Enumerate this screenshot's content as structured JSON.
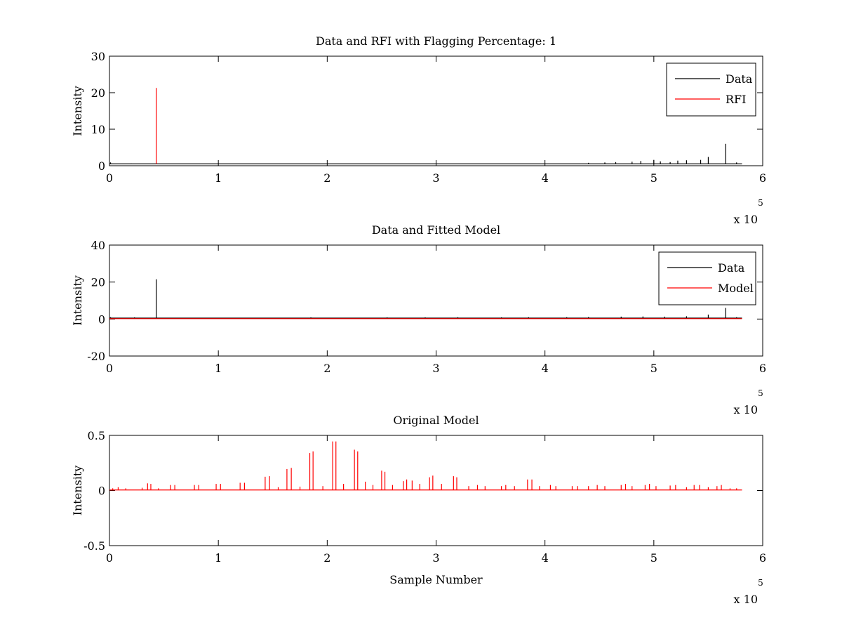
{
  "chart_data": [
    {
      "type": "line",
      "title": "Data and RFI with Flagging Percentage: 1",
      "xlabel": "",
      "ylabel": "Intensity",
      "xlim": [
        0,
        6
      ],
      "ylim": [
        0,
        30
      ],
      "x_exponent": {
        "base": "x 10",
        "power": "5"
      },
      "xticks": [
        0,
        1,
        2,
        3,
        4,
        5,
        6
      ],
      "xticklabels": [
        "0",
        "1",
        "2",
        "3",
        "4",
        "5",
        "6"
      ],
      "yticks": [
        0,
        10,
        20,
        30
      ],
      "yticklabels": [
        "0",
        "10",
        "20",
        "30"
      ],
      "legend_position": "top-right",
      "series": [
        {
          "name": "Data",
          "color": "#000000",
          "baseline": 0.5,
          "x_end": 5.81,
          "spikes": [
            [
              0.01,
              0.9
            ],
            [
              0.2,
              0.6
            ],
            [
              4.4,
              0.8
            ],
            [
              4.55,
              0.9
            ],
            [
              4.65,
              1.0
            ],
            [
              4.8,
              1.1
            ],
            [
              4.88,
              1.3
            ],
            [
              5.0,
              1.6
            ],
            [
              5.06,
              1.2
            ],
            [
              5.15,
              1.0
            ],
            [
              5.22,
              1.4
            ],
            [
              5.3,
              1.5
            ],
            [
              5.43,
              1.6
            ],
            [
              5.5,
              2.4
            ],
            [
              5.66,
              6.0
            ],
            [
              5.76,
              0.9
            ]
          ]
        },
        {
          "name": "RFI",
          "color": "#ff0000",
          "baseline": 0.5,
          "spikes": [
            [
              0.43,
              21.3
            ]
          ]
        }
      ]
    },
    {
      "type": "line",
      "title": "Data and Fitted Model",
      "xlabel": "",
      "ylabel": "Intensity",
      "xlim": [
        0,
        6
      ],
      "ylim": [
        -20,
        40
      ],
      "x_exponent": {
        "base": "x 10",
        "power": "5"
      },
      "xticks": [
        0,
        1,
        2,
        3,
        4,
        5,
        6
      ],
      "xticklabels": [
        "0",
        "1",
        "2",
        "3",
        "4",
        "5",
        "6"
      ],
      "yticks": [
        -20,
        0,
        20,
        40
      ],
      "yticklabels": [
        "-20",
        "0",
        "20",
        "40"
      ],
      "legend_position": "top-right",
      "series": [
        {
          "name": "Data",
          "color": "#000000",
          "baseline": 0.5,
          "x_end": 5.81,
          "spikes": [
            [
              0.01,
              1.0
            ],
            [
              0.23,
              0.9
            ],
            [
              0.43,
              21.5
            ],
            [
              1.85,
              0.9
            ],
            [
              2.55,
              0.9
            ],
            [
              2.9,
              0.9
            ],
            [
              3.2,
              1.0
            ],
            [
              3.6,
              0.9
            ],
            [
              3.85,
              1.0
            ],
            [
              4.2,
              1.0
            ],
            [
              4.4,
              1.1
            ],
            [
              4.7,
              1.3
            ],
            [
              4.9,
              1.4
            ],
            [
              5.1,
              1.3
            ],
            [
              5.3,
              1.5
            ],
            [
              5.5,
              2.4
            ],
            [
              5.66,
              6.0
            ],
            [
              5.76,
              1.0
            ]
          ]
        },
        {
          "name": "Model",
          "color": "#ff0000",
          "baseline": 0.2,
          "x_end": 5.81,
          "spikes": []
        }
      ]
    },
    {
      "type": "line",
      "title": "Original Model",
      "xlabel": "Sample Number",
      "ylabel": "Intensity",
      "xlim": [
        0,
        6
      ],
      "ylim": [
        -0.5,
        0.5
      ],
      "x_exponent": {
        "base": "x 10",
        "power": "5"
      },
      "xticks": [
        0,
        1,
        2,
        3,
        4,
        5,
        6
      ],
      "xticklabels": [
        "0",
        "1",
        "2",
        "3",
        "4",
        "5",
        "6"
      ],
      "yticks": [
        -0.5,
        0,
        0.5
      ],
      "yticklabels": [
        "-0.5",
        "0",
        "0.5"
      ],
      "legend_position": "",
      "series": [
        {
          "name": "",
          "color": "#ff0000",
          "baseline": 0.005,
          "x_end": 5.81,
          "spikes": [
            [
              0.03,
              0.02
            ],
            [
              0.08,
              0.03
            ],
            [
              0.15,
              0.02
            ],
            [
              0.3,
              0.025
            ],
            [
              0.35,
              0.065
            ],
            [
              0.38,
              0.06
            ],
            [
              0.45,
              0.02
            ],
            [
              0.56,
              0.05
            ],
            [
              0.6,
              0.05
            ],
            [
              0.78,
              0.05
            ],
            [
              0.82,
              0.05
            ],
            [
              0.98,
              0.06
            ],
            [
              1.02,
              0.06
            ],
            [
              1.2,
              0.07
            ],
            [
              1.24,
              0.07
            ],
            [
              1.43,
              0.125
            ],
            [
              1.47,
              0.13
            ],
            [
              1.55,
              0.03
            ],
            [
              1.63,
              0.195
            ],
            [
              1.67,
              0.205
            ],
            [
              1.75,
              0.035
            ],
            [
              1.84,
              0.34
            ],
            [
              1.87,
              0.355
            ],
            [
              1.96,
              0.04
            ],
            [
              2.05,
              0.445
            ],
            [
              2.08,
              0.445
            ],
            [
              2.15,
              0.06
            ],
            [
              2.25,
              0.37
            ],
            [
              2.28,
              0.355
            ],
            [
              2.35,
              0.08
            ],
            [
              2.42,
              0.05
            ],
            [
              2.5,
              0.18
            ],
            [
              2.53,
              0.17
            ],
            [
              2.6,
              0.05
            ],
            [
              2.7,
              0.085
            ],
            [
              2.73,
              0.1
            ],
            [
              2.78,
              0.09
            ],
            [
              2.85,
              0.06
            ],
            [
              2.94,
              0.12
            ],
            [
              2.97,
              0.135
            ],
            [
              3.05,
              0.06
            ],
            [
              3.16,
              0.13
            ],
            [
              3.19,
              0.12
            ],
            [
              3.3,
              0.04
            ],
            [
              3.38,
              0.05
            ],
            [
              3.45,
              0.04
            ],
            [
              3.6,
              0.04
            ],
            [
              3.64,
              0.05
            ],
            [
              3.72,
              0.04
            ],
            [
              3.84,
              0.1
            ],
            [
              3.88,
              0.1
            ],
            [
              3.95,
              0.04
            ],
            [
              4.05,
              0.05
            ],
            [
              4.1,
              0.04
            ],
            [
              4.25,
              0.04
            ],
            [
              4.3,
              0.04
            ],
            [
              4.4,
              0.04
            ],
            [
              4.48,
              0.05
            ],
            [
              4.55,
              0.04
            ],
            [
              4.7,
              0.05
            ],
            [
              4.74,
              0.06
            ],
            [
              4.8,
              0.04
            ],
            [
              4.92,
              0.05
            ],
            [
              4.96,
              0.06
            ],
            [
              5.02,
              0.04
            ],
            [
              5.15,
              0.045
            ],
            [
              5.2,
              0.05
            ],
            [
              5.3,
              0.03
            ],
            [
              5.37,
              0.05
            ],
            [
              5.42,
              0.05
            ],
            [
              5.5,
              0.03
            ],
            [
              5.58,
              0.04
            ],
            [
              5.62,
              0.05
            ],
            [
              5.7,
              0.02
            ],
            [
              5.76,
              0.02
            ]
          ]
        }
      ]
    }
  ]
}
